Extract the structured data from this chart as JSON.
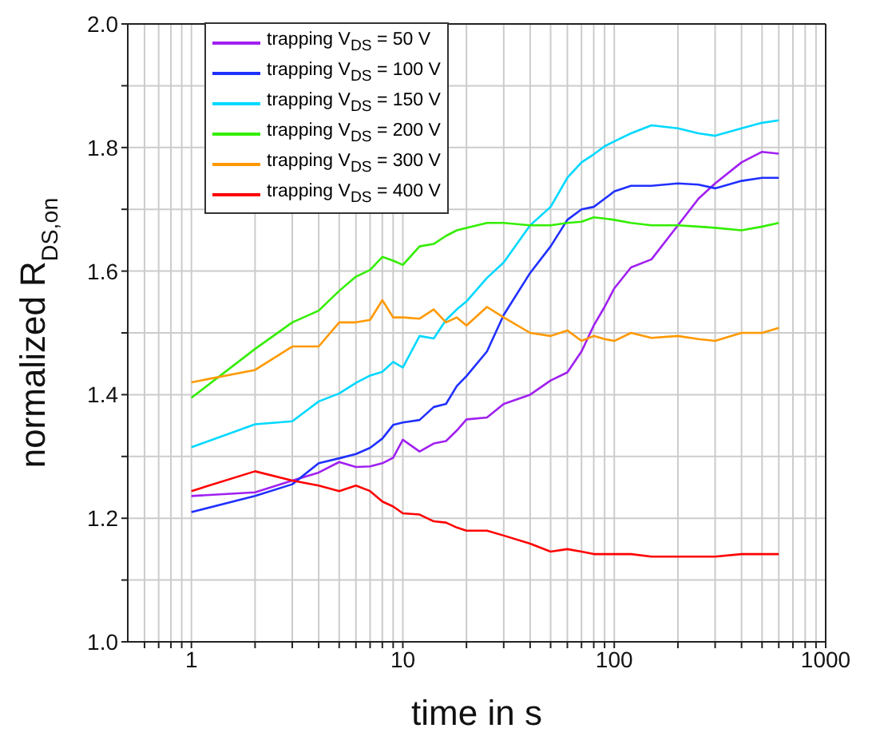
{
  "chart_data": {
    "type": "line",
    "xlabel": "time in s",
    "ylabel": "normalized R$_{DS,on}$",
    "log": "x",
    "grid": true,
    "legend": "top left",
    "line_style": "solid",
    "marker": "none",
    "x": [
      1,
      2,
      3,
      4,
      5,
      6,
      7,
      8,
      9,
      10,
      12,
      14,
      16,
      18,
      20,
      25,
      30,
      40,
      50,
      60,
      70,
      80,
      90,
      100,
      120,
      150,
      200,
      250,
      300,
      400,
      500,
      600
    ],
    "xlim": [
      0.5,
      1000
    ],
    "xticks": [
      {
        "value": 0.6,
        "label": null
      },
      {
        "value": 0.7,
        "label": null
      },
      {
        "value": 0.8,
        "label": null
      },
      {
        "value": 0.9,
        "label": null
      },
      1,
      {
        "value": 2,
        "label": null
      },
      {
        "value": 3,
        "label": null
      },
      {
        "value": 4,
        "label": null
      },
      {
        "value": 5,
        "label": null
      },
      {
        "value": 6,
        "label": null
      },
      {
        "value": 7,
        "label": null
      },
      {
        "value": 8,
        "label": null
      },
      {
        "value": 9,
        "label": null
      },
      10,
      {
        "value": 20,
        "label": null
      },
      {
        "value": 30,
        "label": null
      },
      {
        "value": 40,
        "label": null
      },
      {
        "value": 50,
        "label": null
      },
      {
        "value": 60,
        "label": null
      },
      {
        "value": 70,
        "label": null
      },
      {
        "value": 80,
        "label": null
      },
      {
        "value": 90,
        "label": null
      },
      100,
      {
        "value": 200,
        "label": null
      },
      {
        "value": 300,
        "label": null
      },
      {
        "value": 400,
        "label": null
      },
      {
        "value": 500,
        "label": null
      },
      {
        "value": 600,
        "label": null
      },
      {
        "value": 700,
        "label": null
      },
      {
        "value": 800,
        "label": null
      },
      {
        "value": 900,
        "label": null
      },
      1000
    ],
    "ylim": [
      1.0,
      2.0
    ],
    "yticks": [
      {
        "value": 1,
        "label": "1.0"
      },
      {
        "value": 1.1,
        "label": null
      },
      1.2,
      {
        "value": 1.3,
        "label": null
      },
      1.4,
      {
        "value": 1.5,
        "label": null
      },
      1.6,
      {
        "value": 1.7,
        "label": null
      },
      1.8,
      {
        "value": 1.9,
        "label": null
      },
      {
        "value": 2,
        "label": "2.0"
      }
    ],
    "series": [
      {
        "name": "trapping V$_{DS}$ = 50 V",
        "color": "#a020f0",
        "values": [
          1.236,
          1.242,
          1.261,
          1.274,
          1.291,
          1.283,
          1.284,
          1.289,
          1.298,
          1.327,
          1.308,
          1.321,
          1.325,
          1.342,
          1.36,
          1.363,
          1.385,
          1.4,
          1.423,
          1.436,
          1.47,
          1.512,
          1.542,
          1.572,
          1.606,
          1.619,
          1.674,
          1.717,
          1.742,
          1.776,
          1.793,
          1.79
        ]
      },
      {
        "name": "trapping V$_{DS}$ = 100 V",
        "color": "#2030ff",
        "values": [
          1.21,
          1.236,
          1.255,
          1.289,
          1.297,
          1.304,
          1.314,
          1.329,
          1.351,
          1.355,
          1.359,
          1.38,
          1.385,
          1.414,
          1.43,
          1.47,
          1.529,
          1.597,
          1.64,
          1.683,
          1.7,
          1.704,
          1.717,
          1.729,
          1.738,
          1.738,
          1.742,
          1.74,
          1.734,
          1.746,
          1.751,
          1.751
        ]
      },
      {
        "name": "trapping V$_{DS}$ = 150 V",
        "color": "#00d8ff",
        "values": [
          1.315,
          1.352,
          1.357,
          1.389,
          1.402,
          1.419,
          1.431,
          1.437,
          1.453,
          1.444,
          1.495,
          1.491,
          1.521,
          1.538,
          1.551,
          1.589,
          1.614,
          1.674,
          1.704,
          1.751,
          1.776,
          1.789,
          1.802,
          1.81,
          1.823,
          1.836,
          1.831,
          1.823,
          1.819,
          1.831,
          1.84,
          1.844
        ]
      },
      {
        "name": "trapping V$_{DS}$ = 200 V",
        "color": "#33ee00",
        "values": [
          1.395,
          1.474,
          1.517,
          1.536,
          1.568,
          1.591,
          1.602,
          1.623,
          1.617,
          1.61,
          1.64,
          1.644,
          1.657,
          1.666,
          1.67,
          1.678,
          1.678,
          1.674,
          1.674,
          1.678,
          1.68,
          1.687,
          1.685,
          1.683,
          1.678,
          1.674,
          1.674,
          1.672,
          1.67,
          1.666,
          1.672,
          1.678
        ]
      },
      {
        "name": "trapping V$_{DS}$ = 300 V",
        "color": "#ff9900",
        "values": [
          1.42,
          1.44,
          1.478,
          1.478,
          1.517,
          1.517,
          1.521,
          1.553,
          1.525,
          1.525,
          1.523,
          1.538,
          1.517,
          1.525,
          1.512,
          1.542,
          1.525,
          1.5,
          1.495,
          1.504,
          1.487,
          1.495,
          1.49,
          1.487,
          1.5,
          1.492,
          1.495,
          1.49,
          1.487,
          1.5,
          1.5,
          1.508
        ]
      },
      {
        "name": "trapping V$_{DS}$ = 400 V",
        "color": "#ff0000",
        "values": [
          1.244,
          1.276,
          1.261,
          1.253,
          1.244,
          1.253,
          1.244,
          1.227,
          1.219,
          1.208,
          1.206,
          1.195,
          1.193,
          1.185,
          1.18,
          1.18,
          1.172,
          1.159,
          1.146,
          1.15,
          1.146,
          1.142,
          1.142,
          1.142,
          1.142,
          1.138,
          1.138,
          1.138,
          1.138,
          1.142,
          1.142,
          1.142
        ]
      }
    ]
  }
}
